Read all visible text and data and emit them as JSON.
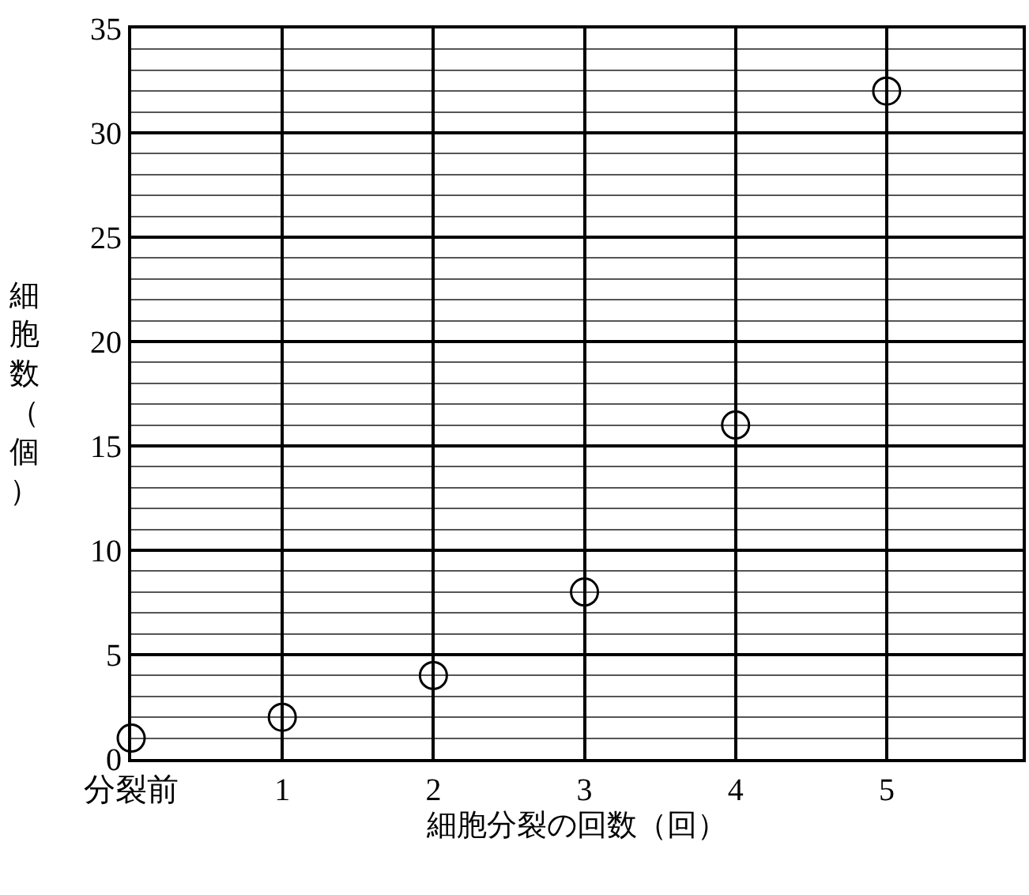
{
  "chart_data": {
    "type": "scatter",
    "xlabel": "細胞分裂の回数（回）",
    "ylabel": "細胞数（個）",
    "x": [
      0,
      1,
      2,
      3,
      4,
      5
    ],
    "series": [
      {
        "color": "#000000",
        "values": [
          1,
          2,
          4,
          8,
          16,
          32
        ]
      }
    ],
    "xlim": [
      0,
      5.9
    ],
    "ylim": [
      0,
      35
    ],
    "xticks": [
      {
        "value": 0,
        "label": "分裂前"
      },
      1,
      2,
      3,
      4,
      5
    ],
    "yticks": [
      0,
      5,
      10,
      15,
      20,
      25,
      30,
      35
    ],
    "grid": true,
    "marker": "circle",
    "legend": false
  }
}
